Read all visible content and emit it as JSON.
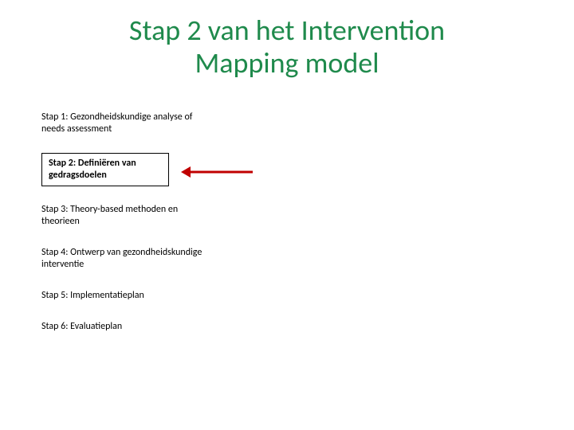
{
  "title": {
    "line1": "Stap 2 van het Intervention",
    "line2": "Mapping model",
    "color": "#1f8a4c",
    "font_size": 36,
    "font_weight": "normal"
  },
  "steps": [
    {
      "text": "Stap 1: Gezondheidskundige analyse of needs assessment",
      "highlighted": false
    },
    {
      "text": "Stap 2: Definiëren van gedragsdoelen",
      "highlighted": true
    },
    {
      "text": "Stap 3: Theory-based methoden en theorieen",
      "highlighted": false
    },
    {
      "text": "Stap 4: Ontwerp van gezondheidskundige interventie",
      "highlighted": false
    },
    {
      "text": "Stap 5: Implementatieplan",
      "highlighted": false
    },
    {
      "text": "Stap 6: Evaluatieplan",
      "highlighted": false
    }
  ],
  "arrow": {
    "color": "#c00000",
    "length": 80,
    "stroke_width": 3,
    "head_width": 12,
    "head_height": 14
  },
  "background_color": "#ffffff"
}
